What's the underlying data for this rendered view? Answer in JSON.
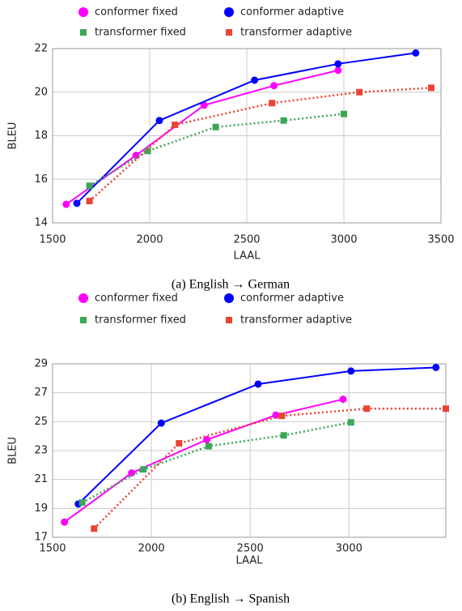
{
  "chart_data": [
    {
      "type": "line",
      "caption": "(a) English → German",
      "xlabel": "LAAL",
      "ylabel": "BLEU",
      "xlim": [
        1500,
        3500
      ],
      "xticks": [
        1500,
        2000,
        2500,
        3000,
        3500
      ],
      "ylim": [
        14,
        22
      ],
      "yticks": [
        14,
        16,
        18,
        20,
        22
      ],
      "grid": true,
      "series": [
        {
          "name": "conformer fixed",
          "color": "#ff00ff",
          "marker": "circle",
          "line_style": "solid",
          "x": [
            1570,
            1930,
            2280,
            2640,
            2970
          ],
          "values": [
            14.85,
            17.1,
            19.4,
            20.3,
            21.0
          ]
        },
        {
          "name": "conformer adaptive",
          "color": "#0000ff",
          "marker": "circle",
          "line_style": "solid",
          "x": [
            1625,
            2050,
            2540,
            2970,
            3370
          ],
          "values": [
            14.9,
            18.7,
            20.55,
            21.3,
            21.8
          ]
        },
        {
          "name": "transformer fixed",
          "color": "#3aa757",
          "marker": "square",
          "line_style": "dotted",
          "x": [
            1690,
            1990,
            2340,
            2690,
            3000
          ],
          "values": [
            15.7,
            17.3,
            18.4,
            18.7,
            19.0
          ]
        },
        {
          "name": "transformer adaptive",
          "color": "#ea4335",
          "marker": "square",
          "line_style": "dotted",
          "x": [
            1690,
            2130,
            2630,
            3080,
            3450
          ],
          "values": [
            15.0,
            18.5,
            19.5,
            20.0,
            20.2
          ]
        }
      ]
    },
    {
      "type": "line",
      "caption": "(b) English → Spanish",
      "xlabel": "LAAL",
      "ylabel": "BLEU",
      "xlim": [
        1500,
        3490
      ],
      "xticks": [
        1500,
        2000,
        2500,
        3000
      ],
      "ylim": [
        17,
        29
      ],
      "yticks": [
        17,
        19,
        21,
        23,
        25,
        27,
        29
      ],
      "grid": true,
      "series": [
        {
          "name": "conformer fixed",
          "color": "#ff00ff",
          "marker": "circle",
          "line_style": "solid",
          "x": [
            1560,
            1900,
            2280,
            2630,
            2970
          ],
          "values": [
            18.05,
            21.45,
            23.75,
            25.45,
            26.55
          ]
        },
        {
          "name": "conformer adaptive",
          "color": "#0000ff",
          "marker": "circle",
          "line_style": "solid",
          "x": [
            1630,
            2050,
            2540,
            3010,
            3440
          ],
          "values": [
            19.3,
            24.9,
            27.6,
            28.5,
            28.75
          ]
        },
        {
          "name": "transformer fixed",
          "color": "#3aa757",
          "marker": "square",
          "line_style": "dotted",
          "x": [
            1650,
            1960,
            2290,
            2670,
            3010
          ],
          "values": [
            19.4,
            21.7,
            23.3,
            24.05,
            24.95
          ]
        },
        {
          "name": "transformer adaptive",
          "color": "#ea4335",
          "marker": "square",
          "line_style": "dotted",
          "x": [
            1710,
            2140,
            2660,
            3090,
            3490
          ],
          "values": [
            17.6,
            23.5,
            25.4,
            25.9,
            25.9
          ]
        }
      ]
    }
  ]
}
